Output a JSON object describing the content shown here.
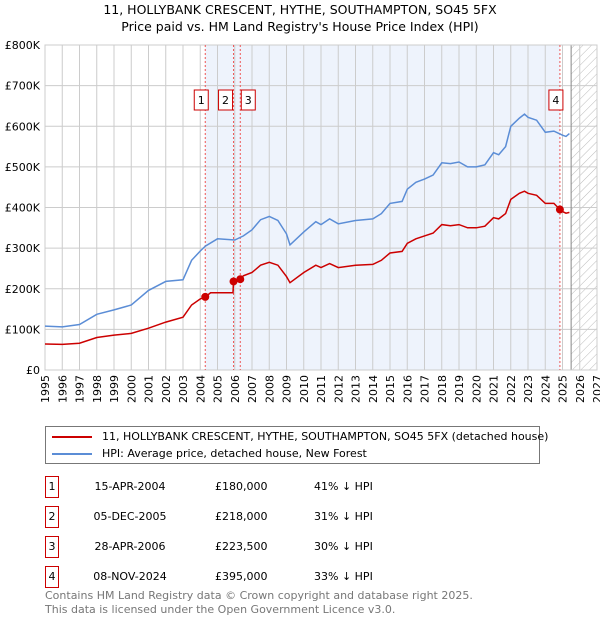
{
  "title_line1": "11, HOLLYBANK CRESCENT, HYTHE, SOUTHAMPTON, SO45 5FX",
  "title_line2": "Price paid vs. HM Land Registry's House Price Index (HPI)",
  "chart_data": {
    "type": "line",
    "xlim": [
      1995,
      2027
    ],
    "ylim": [
      0,
      800000
    ],
    "yticks": [
      {
        "v": 0,
        "l": "£0"
      },
      {
        "v": 100000,
        "l": "£100K"
      },
      {
        "v": 200000,
        "l": "£200K"
      },
      {
        "v": 300000,
        "l": "£300K"
      },
      {
        "v": 400000,
        "l": "£400K"
      },
      {
        "v": 500000,
        "l": "£500K"
      },
      {
        "v": 600000,
        "l": "£600K"
      },
      {
        "v": 700000,
        "l": "£700K"
      },
      {
        "v": 800000,
        "l": "£800K"
      }
    ],
    "xticks": [
      "1995",
      "1996",
      "1997",
      "1998",
      "1999",
      "2000",
      "2001",
      "2002",
      "2003",
      "2004",
      "2005",
      "2006",
      "2007",
      "2008",
      "2009",
      "2010",
      "2011",
      "2012",
      "2013",
      "2014",
      "2015",
      "2016",
      "2017",
      "2018",
      "2019",
      "2020",
      "2021",
      "2022",
      "2023",
      "2024",
      "2025",
      "2026",
      "2027"
    ],
    "grid": true,
    "shaded_range": [
      2004.29,
      2024.85
    ],
    "forecast_from": 2025.5,
    "series": [
      {
        "name": "11, HOLLYBANK CRESCENT, HYTHE, SOUTHAMPTON, SO45 5FX (detached house)",
        "color": "#cc0000",
        "x": [
          1995,
          1996,
          1997,
          1998,
          1999,
          2000,
          2001,
          2002,
          2003,
          2003.5,
          2004,
          2004.29,
          2004.6,
          2005.9,
          2005.93,
          2006.32,
          2006.5,
          2007,
          2007.5,
          2008,
          2008.5,
          2009,
          2009.2,
          2010,
          2010.7,
          2011,
          2011.5,
          2012,
          2013,
          2014,
          2014.5,
          2015,
          2015.7,
          2016,
          2016.5,
          2017,
          2017.5,
          2018,
          2018.5,
          2019,
          2019.5,
          2020,
          2020.5,
          2021,
          2021.3,
          2021.7,
          2022,
          2022.5,
          2022.8,
          2023,
          2023.5,
          2024,
          2024.5,
          2024.85,
          2025,
          2025.2,
          2025.4
        ],
        "y": [
          64000,
          63000,
          66000,
          80000,
          86000,
          90000,
          103000,
          118000,
          130000,
          160000,
          175000,
          180000,
          190000,
          190000,
          218000,
          223500,
          232000,
          240000,
          258000,
          265000,
          258000,
          230000,
          215000,
          240000,
          258000,
          252000,
          262000,
          252000,
          258000,
          260000,
          270000,
          288000,
          292000,
          312000,
          323000,
          330000,
          337000,
          358000,
          355000,
          358000,
          350000,
          350000,
          354000,
          375000,
          372000,
          385000,
          420000,
          435000,
          440000,
          435000,
          430000,
          410000,
          410000,
          395000,
          390000,
          386000,
          388000
        ]
      },
      {
        "name": "HPI: Average price, detached house, New Forest",
        "color": "#5b8dd6",
        "x": [
          1995,
          1996,
          1997,
          1998,
          1999,
          2000,
          2001,
          2002,
          2003,
          2003.5,
          2004,
          2004.3,
          2005,
          2006,
          2006.5,
          2007,
          2007.5,
          2008,
          2008.5,
          2009,
          2009.2,
          2010,
          2010.7,
          2011,
          2011.5,
          2012,
          2013,
          2014,
          2014.5,
          2015,
          2015.7,
          2016,
          2016.5,
          2017,
          2017.5,
          2018,
          2018.5,
          2019,
          2019.5,
          2020,
          2020.5,
          2021,
          2021.3,
          2021.7,
          2022,
          2022.5,
          2022.8,
          2023,
          2023.5,
          2024,
          2024.5,
          2025,
          2025.2,
          2025.4
        ],
        "y": [
          108000,
          106000,
          112000,
          137000,
          148000,
          160000,
          196000,
          218000,
          222000,
          270000,
          293000,
          305000,
          323000,
          320000,
          330000,
          345000,
          370000,
          378000,
          368000,
          335000,
          308000,
          340000,
          365000,
          358000,
          372000,
          360000,
          368000,
          372000,
          385000,
          410000,
          415000,
          445000,
          462000,
          470000,
          480000,
          510000,
          508000,
          512000,
          500000,
          500000,
          505000,
          535000,
          530000,
          550000,
          600000,
          620000,
          630000,
          622000,
          615000,
          585000,
          588000,
          578000,
          575000,
          582000
        ]
      }
    ],
    "sales": [
      {
        "id": "1",
        "x": 2004.29,
        "price": 180000
      },
      {
        "id": "2",
        "x": 2005.93,
        "price": 218000
      },
      {
        "id": "3",
        "x": 2006.32,
        "price": 223500
      },
      {
        "id": "4",
        "x": 2024.85,
        "price": 395000
      }
    ]
  },
  "legend": {
    "property": "11, HOLLYBANK CRESCENT, HYTHE, SOUTHAMPTON, SO45 5FX (detached house)",
    "hpi": "HPI: Average price, detached house, New Forest"
  },
  "transactions": [
    {
      "id": "1",
      "date": "15-APR-2004",
      "price": "£180,000",
      "pct": "41% ↓ HPI"
    },
    {
      "id": "2",
      "date": "05-DEC-2005",
      "price": "£218,000",
      "pct": "31% ↓ HPI"
    },
    {
      "id": "3",
      "date": "28-APR-2006",
      "price": "£223,500",
      "pct": "30% ↓ HPI"
    },
    {
      "id": "4",
      "date": "08-NOV-2024",
      "price": "£395,000",
      "pct": "33% ↓ HPI"
    }
  ],
  "footer": {
    "line1": "Contains HM Land Registry data © Crown copyright and database right 2025.",
    "line2": "This data is licensed under the Open Government Licence v3.0."
  }
}
